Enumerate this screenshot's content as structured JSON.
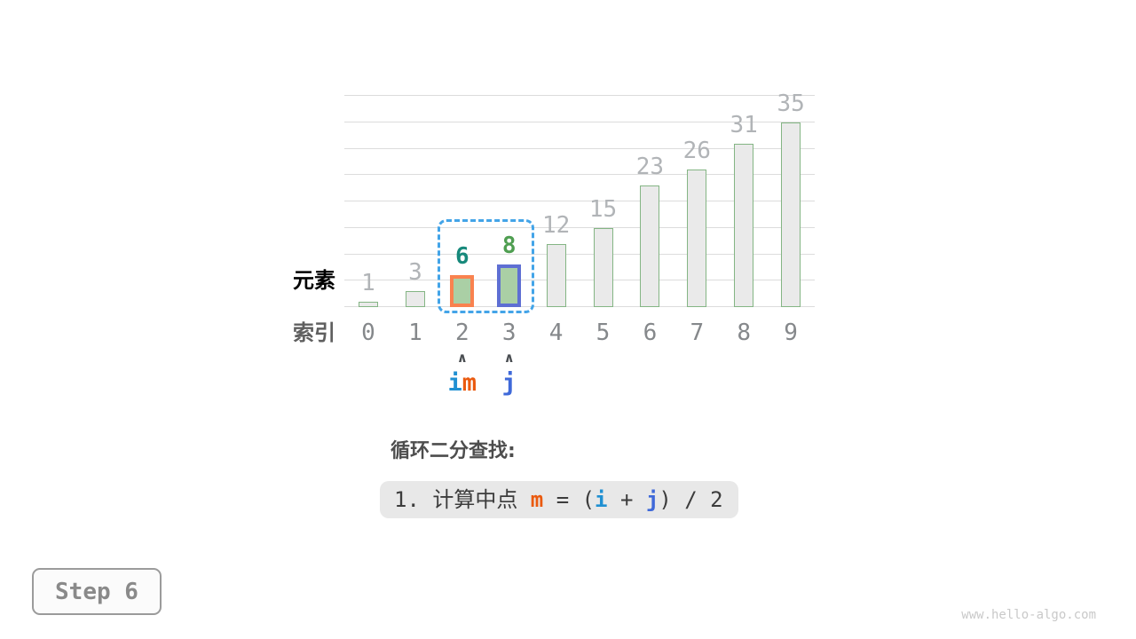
{
  "watermark": "www.hello-algo.com",
  "step_badge": {
    "label": "Step 6"
  },
  "chart_data": {
    "type": "bar",
    "title": "",
    "xlabel": "索引",
    "ylabel": "元素",
    "categories": [
      "0",
      "1",
      "2",
      "3",
      "4",
      "5",
      "6",
      "7",
      "8",
      "9"
    ],
    "values": [
      1,
      3,
      6,
      8,
      12,
      15,
      23,
      26,
      31,
      35
    ],
    "ylim": [
      0,
      40
    ],
    "gridline_step": 5,
    "grid": true,
    "legend": "none",
    "colors": {
      "bar_fill": "#eaeaea",
      "bar_stroke": "#84b584",
      "highlight_fill": "#aacfa5",
      "gridline": "#dcdcdc",
      "value_label": "#b1b4b7",
      "index_label": "#85888b"
    },
    "highlights": [
      {
        "index": 2,
        "border_color": "#f9824f",
        "label_color": "#17897b"
      },
      {
        "index": 3,
        "border_color": "#5e6fd3",
        "label_color": "#4f9e51"
      }
    ],
    "selection_box": {
      "from_index": 2,
      "to_index": 3,
      "color": "#43a4e8"
    }
  },
  "pointers": [
    {
      "index": 2,
      "labels": [
        {
          "text": "i",
          "color": "#2090d2"
        },
        {
          "text": "m",
          "color": "#ea5a0f"
        }
      ]
    },
    {
      "index": 3,
      "labels": [
        {
          "text": "j",
          "color": "#3f69d9"
        }
      ]
    }
  ],
  "caption": {
    "title": "循环二分查找:"
  },
  "formula": {
    "segments": [
      {
        "text": "1. 计算中点 ",
        "color": "#3c3c3c",
        "bold": false
      },
      {
        "text": "m",
        "color": "#ea5a0f",
        "bold": true
      },
      {
        "text": " = (",
        "color": "#3c3c3c",
        "bold": false
      },
      {
        "text": "i",
        "color": "#2090d2",
        "bold": true
      },
      {
        "text": " + ",
        "color": "#3c3c3c",
        "bold": false
      },
      {
        "text": "j",
        "color": "#3f69d9",
        "bold": true
      },
      {
        "text": ") / 2",
        "color": "#3c3c3c",
        "bold": false
      }
    ]
  }
}
